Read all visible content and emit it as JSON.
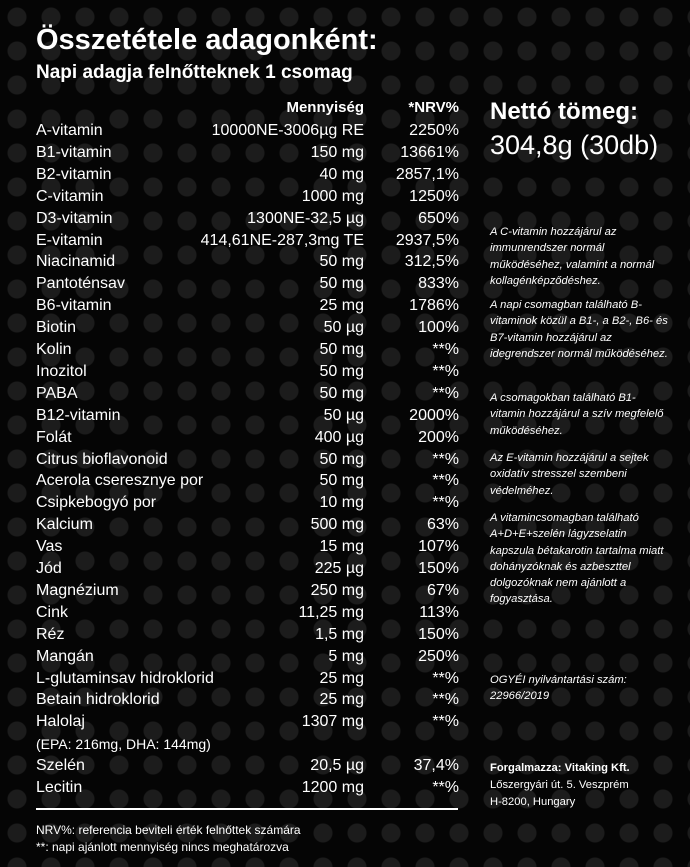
{
  "header": {
    "title": "Összetétele adagonként:",
    "subtitle": "Napi adagja felnőtteknek 1 csomag"
  },
  "table": {
    "columns": [
      "Mennyiség",
      "*NRV%"
    ],
    "rows": [
      [
        "A-vitamin",
        "10000NE-3006µg RE",
        "2250%"
      ],
      [
        "B1-vitamin",
        "150 mg",
        "13661%"
      ],
      [
        "B2-vitamin",
        "40 mg",
        "2857,1%"
      ],
      [
        "C-vitamin",
        "1000 mg",
        "1250%"
      ],
      [
        "D3-vitamin",
        "1300NE-32,5 µg",
        "650%"
      ],
      [
        "E-vitamin",
        "414,61NE-287,3mg TE",
        "2937,5%"
      ],
      [
        "Niacinamid",
        "50 mg",
        "312,5%"
      ],
      [
        "Pantoténsav",
        "50 mg",
        "833%"
      ],
      [
        "B6-vitamin",
        "25 mg",
        "1786%"
      ],
      [
        "Biotin",
        "50 µg",
        "100%"
      ],
      [
        "Kolin",
        "50 mg",
        "**%"
      ],
      [
        "Inozitol",
        "50 mg",
        "**%"
      ],
      [
        "PABA",
        "50 mg",
        "**%"
      ],
      [
        "B12-vitamin",
        "50 µg",
        "2000%"
      ],
      [
        "Folát",
        "400 µg",
        "200%"
      ],
      [
        "Citrus bioflavonoid",
        "50 mg",
        "**%"
      ],
      [
        "Acerola cseresznye por",
        "50 mg",
        "**%"
      ],
      [
        "Csipkebogyó por",
        "10 mg",
        "**%"
      ],
      [
        "Kalcium",
        "500 mg",
        "63%"
      ],
      [
        "Vas",
        "15 mg",
        "107%"
      ],
      [
        "Jód",
        "225 µg",
        "150%"
      ],
      [
        "Magnézium",
        "250 mg",
        "67%"
      ],
      [
        "Cink",
        "11,25 mg",
        "113%"
      ],
      [
        "Réz",
        "1,5 mg",
        "150%"
      ],
      [
        "Mangán",
        "5 mg",
        "250%"
      ],
      [
        "L-glutaminsav hidroklorid",
        "25 mg",
        "**%"
      ],
      [
        "Betain hidroklorid",
        "25 mg",
        "**%"
      ],
      [
        "Halolaj",
        "1307 mg",
        "**%"
      ],
      [
        "(EPA: 216mg, DHA: 144mg)"
      ],
      [
        "Szelén",
        "20,5 µg",
        "37,4%"
      ],
      [
        "Lecitin",
        "1200 mg",
        "**%"
      ]
    ],
    "footnotes": [
      "NRV%: referencia beviteli érték felnőttek számára",
      "**: napi ajánlott mennyiség nincs meghatározva"
    ]
  },
  "side": {
    "net_label": "Nettó tömeg:",
    "net_value": "304,8g (30db)",
    "notes": [
      "A C-vitamin hozzájárul az immunrendszer normál működéséhez, valamint a normál kollagénképződéshez.",
      "A napi csomagban található B-vitaminok közül a B1-, a B2-, B6- és B7-vitamin hozzájárul az idegrendszer normál működéséhez.",
      "A csomagokban található B1-vitamin hozzájárul a szív megfelelő működéséhez.",
      "Az E-vitamin hozzájárul a sejtek oxidatív stresszel szembeni védelméhez.",
      "A vitamincsomagban található A+D+E+szelén lágyzselatin kapszula bétakarotin tartalma miatt dohányzóknak és azbeszttel dolgozóknak nem ajánlott a fogyasztása."
    ],
    "registration": "OGYÉI nyilvántartási szám: 22966/2019",
    "distributor": {
      "name": "Forgalmazza: Vitaking Kft.",
      "address": [
        "Lőszergyári út. 5. Veszprém",
        "H-8200, Hungary"
      ]
    }
  }
}
